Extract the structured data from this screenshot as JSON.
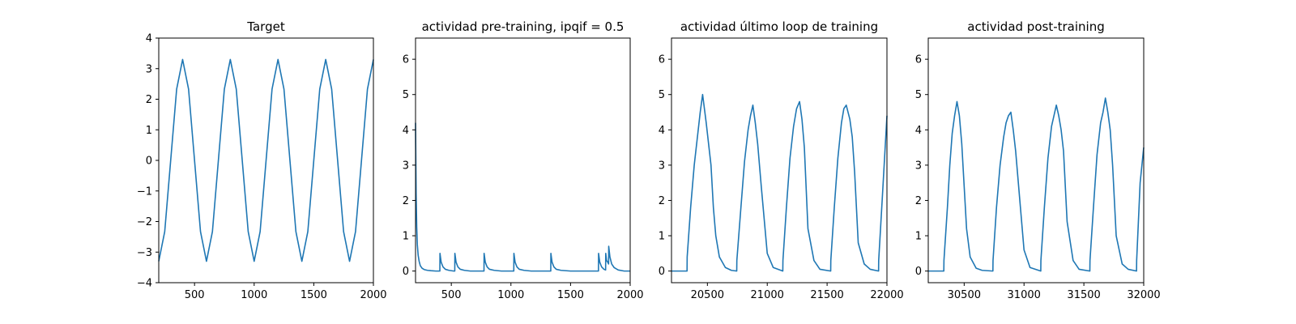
{
  "chart_data": [
    {
      "type": "line",
      "title": "Target",
      "xlabel": "",
      "ylabel": "",
      "xlim": [
        200,
        2000
      ],
      "ylim": [
        -4,
        4
      ],
      "xticks": [
        500,
        1000,
        1500,
        2000
      ],
      "yticks": [
        -4,
        -3,
        -2,
        -1,
        0,
        1,
        2,
        3,
        4
      ],
      "grid": false,
      "color": "#1f77b4",
      "series": [
        {
          "x": [
            200,
            250,
            300,
            350,
            400,
            450,
            500,
            550,
            600,
            650,
            700,
            750,
            800,
            850,
            900,
            950,
            1000,
            1050,
            1100,
            1150,
            1200,
            1250,
            1300,
            1350,
            1400,
            1450,
            1500,
            1550,
            1600,
            1650,
            1700,
            1750,
            1800,
            1850,
            1900,
            1950,
            2000
          ],
          "y": [
            -3.3,
            -2.33,
            0,
            2.33,
            3.3,
            2.33,
            0,
            -2.33,
            -3.3,
            -2.33,
            0,
            2.33,
            3.3,
            2.33,
            0,
            -2.33,
            -3.3,
            -2.33,
            0,
            2.33,
            3.3,
            2.33,
            0,
            -2.33,
            -3.3,
            -2.33,
            0,
            2.33,
            3.3,
            2.33,
            0,
            -2.33,
            -3.3,
            -2.33,
            0,
            2.33,
            3.3
          ]
        }
      ]
    },
    {
      "type": "line",
      "title": "actividad pre-training, ipqif = 0.5",
      "xlabel": "",
      "ylabel": "",
      "xlim": [
        200,
        2000
      ],
      "ylim": [
        -0.33,
        6.6
      ],
      "xticks": [
        500,
        1000,
        1500,
        2000
      ],
      "yticks": [
        0,
        1,
        2,
        3,
        4,
        5,
        6
      ],
      "grid": false,
      "color": "#1f77b4",
      "series": [
        {
          "x": [
            200,
            205,
            210,
            215,
            222,
            230,
            240,
            255,
            275,
            300,
            330,
            370,
            404,
            405,
            415,
            430,
            450,
            480,
            520,
            529,
            530,
            540,
            555,
            575,
            610,
            660,
            720,
            774,
            775,
            785,
            800,
            820,
            860,
            920,
            980,
            1024,
            1025,
            1035,
            1050,
            1070,
            1110,
            1170,
            1240,
            1300,
            1334,
            1335,
            1345,
            1360,
            1380,
            1420,
            1500,
            1600,
            1700,
            1734,
            1735,
            1745,
            1760,
            1780,
            1794,
            1795,
            1802,
            1812,
            1819,
            1820,
            1830,
            1845,
            1865,
            1900,
            1950,
            2000
          ],
          "y": [
            4.2,
            2.2,
            1.25,
            0.75,
            0.45,
            0.28,
            0.15,
            0.08,
            0.04,
            0.02,
            0.01,
            0.0,
            0.0,
            0.5,
            0.25,
            0.12,
            0.05,
            0.02,
            0.0,
            0.0,
            0.5,
            0.25,
            0.12,
            0.05,
            0.02,
            0.0,
            0.0,
            0.0,
            0.5,
            0.25,
            0.12,
            0.05,
            0.02,
            0.0,
            0.0,
            0.0,
            0.5,
            0.25,
            0.12,
            0.05,
            0.02,
            0.0,
            0.0,
            0.0,
            0.0,
            0.5,
            0.25,
            0.12,
            0.05,
            0.02,
            0.0,
            0.0,
            0.0,
            0.0,
            0.5,
            0.25,
            0.12,
            0.05,
            0.03,
            0.5,
            0.3,
            0.25,
            0.2,
            0.7,
            0.4,
            0.2,
            0.1,
            0.03,
            0.0,
            0.0
          ]
        }
      ]
    },
    {
      "type": "line",
      "title": "actividad último loop de training",
      "xlabel": "",
      "ylabel": "",
      "xlim": [
        20200,
        22000
      ],
      "ylim": [
        -0.33,
        6.6
      ],
      "xticks": [
        20500,
        21000,
        21500,
        22000
      ],
      "yticks": [
        0,
        1,
        2,
        3,
        4,
        5,
        6
      ],
      "grid": false,
      "color": "#1f77b4",
      "series": [
        {
          "x": [
            20200,
            20330,
            20331,
            20360,
            20390,
            20420,
            20440,
            20460,
            20475,
            20490,
            20510,
            20530,
            20550,
            20570,
            20600,
            20650,
            20700,
            20745,
            20746,
            20780,
            20810,
            20840,
            20860,
            20880,
            20900,
            20920,
            20950,
            21000,
            21050,
            21130,
            21131,
            21160,
            21190,
            21220,
            21245,
            21270,
            21290,
            21310,
            21340,
            21390,
            21440,
            21530,
            21531,
            21560,
            21590,
            21620,
            21640,
            21660,
            21675,
            21690,
            21710,
            21730,
            21760,
            21810,
            21860,
            21930,
            21931,
            21960,
            21990,
            22000
          ],
          "y": [
            0,
            0,
            0.4,
            1.8,
            3.0,
            3.9,
            4.5,
            5.0,
            4.6,
            4.2,
            3.6,
            3.0,
            1.8,
            1.0,
            0.4,
            0.1,
            0.02,
            0,
            0.3,
            1.8,
            3.1,
            4.0,
            4.4,
            4.7,
            4.2,
            3.6,
            2.4,
            0.5,
            0.1,
            0,
            0.3,
            1.8,
            3.2,
            4.1,
            4.6,
            4.8,
            4.3,
            3.5,
            1.2,
            0.3,
            0.05,
            0,
            0.3,
            1.8,
            3.2,
            4.2,
            4.6,
            4.7,
            4.5,
            4.3,
            3.8,
            2.8,
            0.8,
            0.2,
            0.05,
            0,
            0.3,
            2.0,
            3.8,
            4.4
          ]
        }
      ]
    },
    {
      "type": "line",
      "title": "actividad post-training",
      "xlabel": "",
      "ylabel": "",
      "xlim": [
        30200,
        32000
      ],
      "ylim": [
        -0.33,
        6.6
      ],
      "xticks": [
        30500,
        31000,
        31500,
        32000
      ],
      "yticks": [
        0,
        1,
        2,
        3,
        4,
        5,
        6
      ],
      "grid": false,
      "color": "#1f77b4",
      "series": [
        {
          "x": [
            30200,
            30330,
            30331,
            30360,
            30380,
            30400,
            30420,
            30440,
            30460,
            30480,
            30500,
            30520,
            30550,
            30600,
            30650,
            30740,
            30741,
            30770,
            30800,
            30830,
            30850,
            30870,
            30890,
            30910,
            30930,
            30960,
            31000,
            31050,
            31140,
            31141,
            31170,
            31200,
            31230,
            31250,
            31270,
            31290,
            31310,
            31330,
            31360,
            31410,
            31460,
            31550,
            31551,
            31580,
            31610,
            31640,
            31660,
            31680,
            31700,
            31720,
            31740,
            31770,
            31820,
            31870,
            31940,
            31941,
            31970,
            32000
          ],
          "y": [
            0,
            0,
            0.3,
            1.8,
            3.0,
            3.9,
            4.4,
            4.8,
            4.4,
            3.6,
            2.4,
            1.2,
            0.4,
            0.08,
            0.02,
            0,
            0.3,
            1.8,
            3.0,
            3.8,
            4.2,
            4.4,
            4.5,
            4.0,
            3.4,
            2.2,
            0.6,
            0.1,
            0,
            0.3,
            1.8,
            3.2,
            4.1,
            4.4,
            4.7,
            4.4,
            4.0,
            3.4,
            1.4,
            0.3,
            0.05,
            0,
            0.3,
            1.8,
            3.3,
            4.2,
            4.5,
            4.9,
            4.5,
            4.0,
            3.0,
            1.0,
            0.2,
            0.05,
            0,
            0.3,
            2.5,
            3.5
          ]
        }
      ]
    }
  ]
}
